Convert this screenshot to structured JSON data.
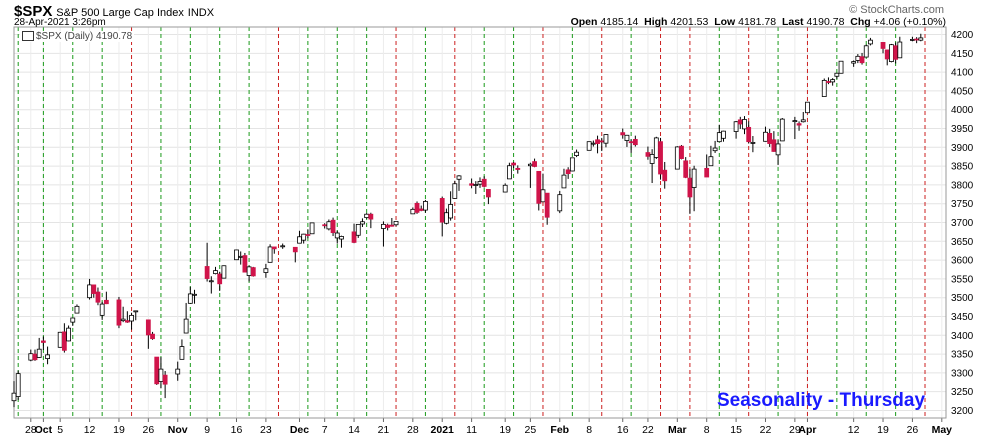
{
  "header": {
    "symbol": "$SPX",
    "description": "S&P 500 Large Cap Index",
    "exchange": "INDX",
    "date": "28-Apr-2021 3:26pm",
    "brand": "© StockCharts.com",
    "open_label": "Open",
    "open": "4185.14",
    "high_label": "High",
    "high": "4201.53",
    "low_label": "Low",
    "low": "4181.78",
    "last_label": "Last",
    "last": "4190.78",
    "chg_label": "Chg",
    "chg": "+4.06 (+0.10%)"
  },
  "legend": {
    "text": "$SPX (Daily) 4190.78"
  },
  "annotation": {
    "text": "Seasonality - Thursday"
  },
  "colors": {
    "up": "#ffffff",
    "down": "#d0144a",
    "green_line": "#1a9a1a",
    "red_line": "#cc2020",
    "annotation": "#1a1aff"
  },
  "chart_data": {
    "type": "candlestick",
    "x_range": [
      "2020-09-24",
      "2021-05-04"
    ],
    "ylim": [
      3180,
      4220
    ],
    "y_ticks": [
      3200,
      3250,
      3300,
      3350,
      3400,
      3450,
      3500,
      3550,
      3600,
      3650,
      3700,
      3750,
      3800,
      3850,
      3900,
      3950,
      4000,
      4050,
      4100,
      4150,
      4200
    ],
    "x_ticks": [
      {
        "date": "2020-09-28",
        "label": "28"
      },
      {
        "date": "2020-10-01",
        "label": "Oct"
      },
      {
        "date": "2020-10-05",
        "label": "5"
      },
      {
        "date": "2020-10-12",
        "label": "12"
      },
      {
        "date": "2020-10-19",
        "label": "19"
      },
      {
        "date": "2020-10-26",
        "label": "26"
      },
      {
        "date": "2020-11-02",
        "label": "Nov"
      },
      {
        "date": "2020-11-09",
        "label": "9"
      },
      {
        "date": "2020-11-16",
        "label": "16"
      },
      {
        "date": "2020-11-23",
        "label": "23"
      },
      {
        "date": "2020-12-01",
        "label": "Dec"
      },
      {
        "date": "2020-12-07",
        "label": "7"
      },
      {
        "date": "2020-12-14",
        "label": "14"
      },
      {
        "date": "2020-12-21",
        "label": "21"
      },
      {
        "date": "2020-12-28",
        "label": "28"
      },
      {
        "date": "2021-01-04",
        "label": "2021"
      },
      {
        "date": "2021-01-11",
        "label": "11"
      },
      {
        "date": "2021-01-19",
        "label": "19"
      },
      {
        "date": "2021-01-25",
        "label": "25"
      },
      {
        "date": "2021-02-01",
        "label": "Feb"
      },
      {
        "date": "2021-02-08",
        "label": "8"
      },
      {
        "date": "2021-02-16",
        "label": "16"
      },
      {
        "date": "2021-02-22",
        "label": "22"
      },
      {
        "date": "2021-03-01",
        "label": "Mar"
      },
      {
        "date": "2021-03-08",
        "label": "8"
      },
      {
        "date": "2021-03-15",
        "label": "15"
      },
      {
        "date": "2021-03-22",
        "label": "22"
      },
      {
        "date": "2021-03-29",
        "label": "29"
      },
      {
        "date": "2021-04-01",
        "label": "Apr"
      },
      {
        "date": "2021-04-12",
        "label": "12"
      },
      {
        "date": "2021-04-19",
        "label": "19"
      },
      {
        "date": "2021-04-26",
        "label": "26"
      },
      {
        "date": "2021-05-03",
        "label": "May"
      }
    ],
    "green_lines": [
      "2020-09-25",
      "2020-10-01",
      "2020-10-08",
      "2020-10-15",
      "2020-10-29",
      "2020-11-05",
      "2020-11-12",
      "2020-11-19",
      "2020-12-03",
      "2020-12-10",
      "2020-12-17",
      "2020-12-31",
      "2021-01-14",
      "2021-01-21",
      "2021-02-04",
      "2021-02-18",
      "2021-03-11",
      "2021-03-25",
      "2021-04-08",
      "2021-04-15",
      "2021-04-22"
    ],
    "red_lines": [
      "2020-10-22",
      "2020-11-26",
      "2020-12-24",
      "2021-01-07",
      "2021-01-28",
      "2021-02-11",
      "2021-02-25",
      "2021-03-04",
      "2021-03-18",
      "2021-04-01",
      "2021-04-29"
    ],
    "candles": [
      [
        "2020-09-24",
        3226,
        3278,
        3209,
        3246
      ],
      [
        "2020-09-25",
        3237,
        3306,
        3228,
        3298
      ],
      [
        "2020-09-28",
        3334,
        3362,
        3331,
        3351
      ],
      [
        "2020-09-29",
        3350,
        3362,
        3332,
        3335
      ],
      [
        "2020-09-30",
        3341,
        3393,
        3340,
        3363
      ],
      [
        "2020-10-01",
        3385,
        3397,
        3361,
        3381
      ],
      [
        "2020-10-02",
        3338,
        3370,
        3323,
        3348
      ],
      [
        "2020-10-05",
        3368,
        3409,
        3367,
        3408
      ],
      [
        "2020-10-06",
        3409,
        3432,
        3354,
        3360
      ],
      [
        "2020-10-07",
        3385,
        3426,
        3384,
        3419
      ],
      [
        "2020-10-08",
        3435,
        3446,
        3425,
        3446
      ],
      [
        "2020-10-09",
        3459,
        3482,
        3458,
        3477
      ],
      [
        "2020-10-12",
        3500,
        3550,
        3495,
        3534
      ],
      [
        "2020-10-13",
        3534,
        3534,
        3500,
        3511
      ],
      [
        "2020-10-14",
        3515,
        3527,
        3480,
        3488
      ],
      [
        "2020-10-15",
        3453,
        3489,
        3441,
        3483
      ],
      [
        "2020-10-16",
        3493,
        3516,
        3483,
        3484
      ],
      [
        "2020-10-19",
        3494,
        3502,
        3419,
        3427
      ],
      [
        "2020-10-20",
        3439,
        3476,
        3435,
        3443
      ],
      [
        "2020-10-21",
        3439,
        3464,
        3433,
        3435
      ],
      [
        "2020-10-22",
        3438,
        3460,
        3415,
        3453
      ],
      [
        "2020-10-23",
        3464,
        3466,
        3440,
        3465
      ],
      [
        "2020-10-26",
        3441,
        3441,
        3364,
        3401
      ],
      [
        "2020-10-27",
        3403,
        3409,
        3388,
        3391
      ],
      [
        "2020-10-28",
        3342,
        3342,
        3268,
        3271
      ],
      [
        "2020-10-29",
        3277,
        3342,
        3259,
        3310
      ],
      [
        "2020-10-30",
        3294,
        3305,
        3233,
        3270
      ],
      [
        "2020-11-02",
        3297,
        3330,
        3279,
        3310
      ],
      [
        "2020-11-03",
        3336,
        3389,
        3336,
        3370
      ],
      [
        "2020-11-04",
        3406,
        3486,
        3405,
        3443
      ],
      [
        "2020-11-05",
        3485,
        3529,
        3485,
        3510
      ],
      [
        "2020-11-06",
        3508,
        3521,
        3484,
        3509
      ],
      [
        "2020-11-09",
        3583,
        3646,
        3543,
        3551
      ],
      [
        "2020-11-10",
        3543,
        3557,
        3511,
        3545
      ],
      [
        "2020-11-11",
        3564,
        3582,
        3562,
        3572
      ],
      [
        "2020-11-12",
        3563,
        3569,
        3518,
        3537
      ],
      [
        "2020-11-13",
        3552,
        3586,
        3552,
        3585
      ],
      [
        "2020-11-16",
        3601,
        3628,
        3600,
        3627
      ],
      [
        "2020-11-17",
        3610,
        3623,
        3588,
        3610
      ],
      [
        "2020-11-18",
        3612,
        3619,
        3567,
        3568
      ],
      [
        "2020-11-19",
        3559,
        3585,
        3543,
        3582
      ],
      [
        "2020-11-20",
        3580,
        3582,
        3556,
        3558
      ],
      [
        "2020-11-23",
        3567,
        3590,
        3553,
        3577
      ],
      [
        "2020-11-24",
        3594,
        3642,
        3594,
        3635
      ],
      [
        "2020-11-25",
        3635,
        3635,
        3617,
        3630
      ],
      [
        "2020-11-27",
        3638,
        3644,
        3630,
        3638
      ],
      [
        "2020-11-30",
        3634,
        3634,
        3594,
        3622
      ],
      [
        "2020-12-01",
        3645,
        3678,
        3645,
        3662
      ],
      [
        "2020-12-02",
        3653,
        3670,
        3644,
        3669
      ],
      [
        "2020-12-03",
        3668,
        3682,
        3658,
        3667
      ],
      [
        "2020-12-04",
        3670,
        3699,
        3670,
        3699
      ],
      [
        "2020-12-07",
        3694,
        3698,
        3684,
        3692
      ],
      [
        "2020-12-08",
        3683,
        3708,
        3679,
        3702
      ],
      [
        "2020-12-09",
        3706,
        3713,
        3664,
        3673
      ],
      [
        "2020-12-10",
        3659,
        3678,
        3644,
        3672
      ],
      [
        "2020-12-11",
        3656,
        3665,
        3633,
        3663
      ],
      [
        "2020-12-14",
        3675,
        3697,
        3645,
        3647
      ],
      [
        "2020-12-15",
        3666,
        3695,
        3659,
        3695
      ],
      [
        "2020-12-16",
        3696,
        3711,
        3688,
        3702
      ],
      [
        "2020-12-17",
        3713,
        3725,
        3710,
        3722
      ],
      [
        "2020-12-18",
        3722,
        3726,
        3685,
        3709
      ],
      [
        "2020-12-21",
        3684,
        3703,
        3636,
        3695
      ],
      [
        "2020-12-22",
        3693,
        3697,
        3679,
        3687
      ],
      [
        "2020-12-23",
        3693,
        3712,
        3689,
        3690
      ],
      [
        "2020-12-24",
        3694,
        3703,
        3690,
        3703
      ],
      [
        "2020-12-28",
        3723,
        3740,
        3723,
        3735
      ],
      [
        "2020-12-29",
        3751,
        3756,
        3723,
        3727
      ],
      [
        "2020-12-30",
        3736,
        3745,
        3730,
        3732
      ],
      [
        "2020-12-31",
        3733,
        3760,
        3726,
        3756
      ],
      [
        "2021-01-04",
        3764,
        3769,
        3663,
        3701
      ],
      [
        "2021-01-05",
        3698,
        3737,
        3695,
        3726
      ],
      [
        "2021-01-06",
        3712,
        3783,
        3705,
        3748
      ],
      [
        "2021-01-07",
        3764,
        3811,
        3764,
        3803
      ],
      [
        "2021-01-08",
        3815,
        3826,
        3784,
        3824
      ],
      [
        "2021-01-11",
        3803,
        3817,
        3791,
        3799
      ],
      [
        "2021-01-12",
        3801,
        3810,
        3776,
        3801
      ],
      [
        "2021-01-13",
        3802,
        3820,
        3792,
        3809
      ],
      [
        "2021-01-14",
        3815,
        3823,
        3793,
        3796
      ],
      [
        "2021-01-15",
        3788,
        3788,
        3749,
        3768
      ],
      [
        "2021-01-19",
        3781,
        3804,
        3780,
        3799
      ],
      [
        "2021-01-20",
        3816,
        3859,
        3816,
        3851
      ],
      [
        "2021-01-21",
        3858,
        3861,
        3845,
        3853
      ],
      [
        "2021-01-22",
        3844,
        3852,
        3830,
        3841
      ],
      [
        "2021-01-25",
        3851,
        3859,
        3792,
        3855
      ],
      [
        "2021-01-26",
        3862,
        3870,
        3847,
        3849
      ],
      [
        "2021-01-27",
        3836,
        3836,
        3732,
        3751
      ],
      [
        "2021-01-28",
        3755,
        3830,
        3755,
        3787
      ],
      [
        "2021-01-29",
        3778,
        3778,
        3694,
        3714
      ],
      [
        "2021-02-01",
        3731,
        3784,
        3725,
        3774
      ],
      [
        "2021-02-02",
        3792,
        3843,
        3792,
        3826
      ],
      [
        "2021-02-03",
        3840,
        3847,
        3816,
        3830
      ],
      [
        "2021-02-04",
        3837,
        3872,
        3836,
        3872
      ],
      [
        "2021-02-05",
        3878,
        3894,
        3874,
        3887
      ],
      [
        "2021-02-08",
        3892,
        3915,
        3892,
        3915
      ],
      [
        "2021-02-09",
        3910,
        3918,
        3902,
        3911
      ],
      [
        "2021-02-10",
        3920,
        3931,
        3884,
        3910
      ],
      [
        "2021-02-11",
        3917,
        3925,
        3890,
        3916
      ],
      [
        "2021-02-12",
        3911,
        3935,
        3900,
        3934
      ],
      [
        "2021-02-16",
        3939,
        3950,
        3923,
        3933
      ],
      [
        "2021-02-17",
        3918,
        3933,
        3901,
        3932
      ],
      [
        "2021-02-18",
        3915,
        3921,
        3885,
        3914
      ],
      [
        "2021-02-19",
        3921,
        3931,
        3902,
        3907
      ],
      [
        "2021-02-22",
        3886,
        3902,
        3867,
        3876
      ],
      [
        "2021-02-23",
        3857,
        3895,
        3805,
        3881
      ],
      [
        "2021-02-24",
        3873,
        3928,
        3869,
        3925
      ],
      [
        "2021-02-25",
        3915,
        3925,
        3814,
        3829
      ],
      [
        "2021-02-26",
        3839,
        3861,
        3790,
        3811
      ],
      [
        "2021-03-01",
        3842,
        3903,
        3842,
        3901
      ],
      [
        "2021-03-02",
        3903,
        3906,
        3868,
        3870
      ],
      [
        "2021-03-03",
        3864,
        3874,
        3818,
        3820
      ],
      [
        "2021-03-04",
        3818,
        3843,
        3723,
        3768
      ],
      [
        "2021-03-05",
        3793,
        3851,
        3730,
        3842
      ],
      [
        "2021-03-08",
        3844,
        3881,
        3821,
        3821
      ],
      [
        "2021-03-09",
        3851,
        3904,
        3851,
        3875
      ],
      [
        "2021-03-10",
        3891,
        3917,
        3885,
        3898
      ],
      [
        "2021-03-11",
        3915,
        3960,
        3915,
        3939
      ],
      [
        "2021-03-12",
        3924,
        3944,
        3915,
        3943
      ],
      [
        "2021-03-15",
        3942,
        3970,
        3923,
        3968
      ],
      [
        "2021-03-16",
        3973,
        3981,
        3949,
        3962
      ],
      [
        "2021-03-17",
        3949,
        3983,
        3935,
        3974
      ],
      [
        "2021-03-18",
        3953,
        3969,
        3910,
        3915
      ],
      [
        "2021-03-19",
        3913,
        3930,
        3887,
        3913
      ],
      [
        "2021-03-22",
        3916,
        3955,
        3915,
        3940
      ],
      [
        "2021-03-23",
        3937,
        3949,
        3901,
        3910
      ],
      [
        "2021-03-24",
        3920,
        3943,
        3888,
        3889
      ],
      [
        "2021-03-25",
        3880,
        3919,
        3853,
        3909
      ],
      [
        "2021-03-26",
        3917,
        3978,
        3917,
        3975
      ],
      [
        "2021-03-29",
        3969,
        3981,
        3922,
        3971
      ],
      [
        "2021-03-30",
        3963,
        3969,
        3944,
        3959
      ],
      [
        "2021-03-31",
        3968,
        3994,
        3966,
        3973
      ],
      [
        "2021-04-01",
        3992,
        4020,
        3992,
        4020
      ],
      [
        "2021-04-05",
        4035,
        4083,
        4035,
        4078
      ],
      [
        "2021-04-06",
        4075,
        4086,
        4068,
        4074
      ],
      [
        "2021-04-07",
        4074,
        4084,
        4064,
        4080
      ],
      [
        "2021-04-08",
        4089,
        4098,
        4082,
        4097
      ],
      [
        "2021-04-09",
        4097,
        4129,
        4096,
        4129
      ],
      [
        "2021-04-12",
        4124,
        4131,
        4114,
        4128
      ],
      [
        "2021-04-13",
        4131,
        4148,
        4124,
        4142
      ],
      [
        "2021-04-14",
        4141,
        4151,
        4120,
        4125
      ],
      [
        "2021-04-15",
        4140,
        4173,
        4140,
        4170
      ],
      [
        "2021-04-16",
        4175,
        4191,
        4171,
        4185
      ],
      [
        "2021-04-19",
        4179,
        4180,
        4150,
        4163
      ],
      [
        "2021-04-20",
        4159,
        4160,
        4118,
        4135
      ],
      [
        "2021-04-21",
        4128,
        4175,
        4126,
        4173
      ],
      [
        "2021-04-22",
        4170,
        4179,
        4123,
        4134
      ],
      [
        "2021-04-23",
        4138,
        4194,
        4138,
        4180
      ],
      [
        "2021-04-26",
        4185,
        4194,
        4182,
        4187
      ],
      [
        "2021-04-27",
        4188,
        4193,
        4177,
        4187
      ],
      [
        "2021-04-28",
        4185,
        4202,
        4182,
        4191
      ]
    ]
  }
}
